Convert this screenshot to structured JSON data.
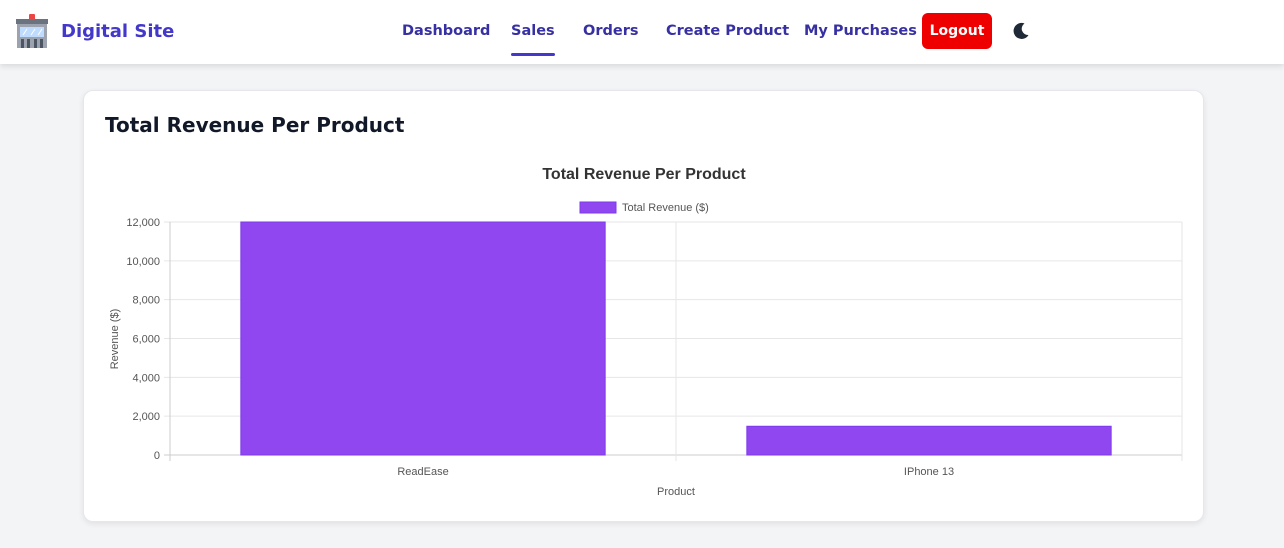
{
  "nav": {
    "brand": "Digital Site",
    "links": [
      {
        "label": "Dashboard",
        "active": false
      },
      {
        "label": "Sales",
        "active": true
      },
      {
        "label": "Orders",
        "active": false
      },
      {
        "label": "Create Product",
        "active": false
      },
      {
        "label": "My Purchases",
        "active": false
      }
    ],
    "logout_label": "Logout",
    "theme_icon": "moon-icon"
  },
  "card": {
    "title": "Total Revenue Per Product"
  },
  "chart_data": {
    "type": "bar",
    "title": "Total Revenue Per Product",
    "categories": [
      "ReadEase",
      "IPhone 13"
    ],
    "series": [
      {
        "name": "Total Revenue ($)",
        "values": [
          12000,
          1480
        ],
        "color": "#9147f0",
        "border_color": "#7c3aed"
      }
    ],
    "xlabel": "Product",
    "ylabel": "Revenue ($)",
    "ylim": [
      0,
      12000
    ],
    "yticks": [
      "0",
      "2,000",
      "4,000",
      "6,000",
      "8,000",
      "10,000",
      "12,000"
    ],
    "grid": true,
    "legend": "top"
  }
}
